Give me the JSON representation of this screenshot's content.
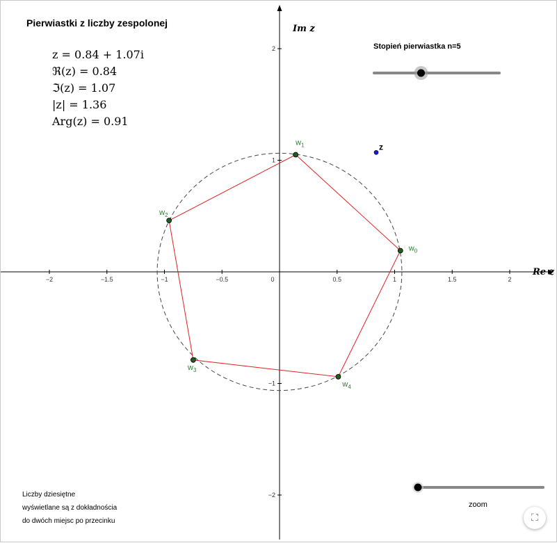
{
  "title": "Pierwiastki z liczby zespolonej",
  "formulas": {
    "z": "z = 0.84 + 1.07i",
    "re": "ℜ(z) = 0.84",
    "im": "ℑ(z) = 1.07",
    "abs": "|z| = 1.36",
    "arg": "Arg(z) = 0.91"
  },
  "slider_degree": {
    "label": "Stopień pierwiastka n=5",
    "n": 5,
    "range": [
      2,
      10
    ]
  },
  "slider_zoom": {
    "label": "zoom"
  },
  "note": {
    "line1": "Liczby dziesiętne",
    "line2": "wyświetlane są z dokładnościa",
    "line3": "do dwóch miejsc po przecinku"
  },
  "axes": {
    "x_label": "Re z",
    "y_label": "Im z",
    "x_ticks": [
      "−2",
      "−1.5",
      "−1",
      "−0.5",
      "0",
      "0.5",
      "1",
      "1.5",
      "2"
    ],
    "y_ticks": [
      "2",
      "1",
      "−1",
      "−2"
    ]
  },
  "point_z": {
    "label": "z",
    "re": 0.84,
    "im": 1.07,
    "color": "#1a1ad6"
  },
  "roots": {
    "radius": 1.063,
    "color_polygon": "#e02020",
    "color_label": "#2e7d32",
    "points": [
      {
        "label": "w",
        "sub": "0",
        "re": 1.05,
        "im": 0.19
      },
      {
        "label": "w",
        "sub": "1",
        "re": 0.14,
        "im": 1.05
      },
      {
        "label": "w",
        "sub": "2",
        "re": -0.96,
        "im": 0.46
      },
      {
        "label": "w",
        "sub": "3",
        "re": -0.75,
        "im": -0.79
      },
      {
        "label": "w",
        "sub": "4",
        "re": 0.51,
        "im": -0.94
      }
    ]
  }
}
